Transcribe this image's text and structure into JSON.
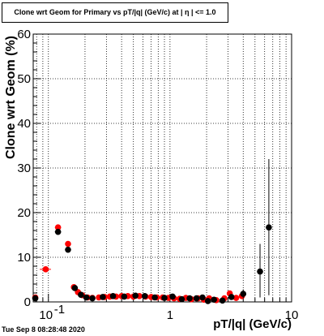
{
  "title": "Clone wrt Geom for Primary vs pT/|q| (GeV/c) at | η | <= 1.0",
  "timestamp": "Tue Sep  8 08:28:48 2020",
  "chart_data": {
    "type": "scatter",
    "title": "Clone wrt Geom for Primary vs pT/|q| (GeV/c) at | η | <= 1.0",
    "xlabel": "pT/|q| (GeV/c)",
    "ylabel": "Clone wrt Geom (%)",
    "xscale": "log",
    "xlim": [
      0.075,
      10
    ],
    "ylim": [
      0,
      60
    ],
    "grid": true,
    "x_tick_labels": [
      {
        "value": 0.1,
        "label": "10",
        "exp": "-1"
      },
      {
        "value": 1,
        "label": "1"
      },
      {
        "value": 10,
        "label": "10"
      }
    ],
    "y_tick_labels": [
      0,
      10,
      20,
      30,
      40,
      50,
      60
    ],
    "series": [
      {
        "color": "#ff0000",
        "points": [
          {
            "x": 0.078,
            "y": 1.0,
            "ex": [
              0.075,
              0.082
            ]
          },
          {
            "x": 0.095,
            "y": 7.3,
            "ex": [
              0.085,
              0.105
            ]
          },
          {
            "x": 0.12,
            "y": 16.7,
            "ex": [
              0.113,
              0.127
            ]
          },
          {
            "x": 0.145,
            "y": 13.0
          },
          {
            "x": 0.162,
            "y": 3.3
          },
          {
            "x": 0.175,
            "y": 2.2
          },
          {
            "x": 0.19,
            "y": 1.5
          },
          {
            "x": 0.21,
            "y": 1.0
          },
          {
            "x": 0.23,
            "y": 0.9
          },
          {
            "x": 0.26,
            "y": 1.0
          },
          {
            "x": 0.29,
            "y": 1.1
          },
          {
            "x": 0.32,
            "y": 1.2
          },
          {
            "x": 0.36,
            "y": 1.2
          },
          {
            "x": 0.4,
            "y": 1.3
          },
          {
            "x": 0.45,
            "y": 1.3
          },
          {
            "x": 0.5,
            "y": 1.2
          },
          {
            "x": 0.56,
            "y": 1.3
          },
          {
            "x": 0.63,
            "y": 1.2
          },
          {
            "x": 0.7,
            "y": 1.1
          },
          {
            "x": 0.78,
            "y": 1.0
          },
          {
            "x": 0.87,
            "y": 1.0
          },
          {
            "x": 0.97,
            "y": 0.9
          },
          {
            "x": 1.08,
            "y": 0.8
          },
          {
            "x": 1.2,
            "y": 0.7
          },
          {
            "x": 1.35,
            "y": 0.9
          },
          {
            "x": 1.5,
            "y": 0.6
          },
          {
            "x": 1.7,
            "y": 0.8
          },
          {
            "x": 1.9,
            "y": 0.5
          },
          {
            "x": 2.1,
            "y": 0.8
          },
          {
            "x": 2.4,
            "y": 0.4
          },
          {
            "x": 2.8,
            "y": 0.8
          },
          {
            "x": 3.1,
            "y": 1.9
          },
          {
            "x": 3.5,
            "y": 0.9
          },
          {
            "x": 3.9,
            "y": 1.3
          }
        ]
      },
      {
        "color": "#000000",
        "points": [
          {
            "x": 0.078,
            "y": 0.8
          },
          {
            "x": 0.12,
            "y": 15.7,
            "ex": [
              0.113,
              0.127
            ]
          },
          {
            "x": 0.145,
            "y": 11.7
          },
          {
            "x": 0.165,
            "y": 3.1
          },
          {
            "x": 0.185,
            "y": 1.6
          },
          {
            "x": 0.205,
            "y": 1.0
          },
          {
            "x": 0.23,
            "y": 0.8
          },
          {
            "x": 0.28,
            "y": 1.1
          },
          {
            "x": 0.34,
            "y": 1.3
          },
          {
            "x": 0.42,
            "y": 1.2
          },
          {
            "x": 0.52,
            "y": 1.4
          },
          {
            "x": 0.62,
            "y": 1.3
          },
          {
            "x": 0.75,
            "y": 1.0
          },
          {
            "x": 0.9,
            "y": 0.9
          },
          {
            "x": 1.05,
            "y": 1.2
          },
          {
            "x": 1.25,
            "y": 0.6
          },
          {
            "x": 1.45,
            "y": 0.8
          },
          {
            "x": 1.65,
            "y": 0.8
          },
          {
            "x": 1.85,
            "y": 1.0
          },
          {
            "x": 2.05,
            "y": 0.2
          },
          {
            "x": 2.3,
            "y": 0.5
          },
          {
            "x": 2.7,
            "y": 0.3
          },
          {
            "x": 3.2,
            "y": 1.1
          },
          {
            "x": 4.0,
            "y": 1.8,
            "ey": [
              0.8,
              2.8
            ]
          },
          {
            "x": 5.5,
            "y": 6.8,
            "ey": [
              1.0,
              13.0
            ]
          },
          {
            "x": 6.5,
            "y": 16.7,
            "ey": [
              1.5,
              32.0
            ]
          }
        ]
      }
    ]
  }
}
